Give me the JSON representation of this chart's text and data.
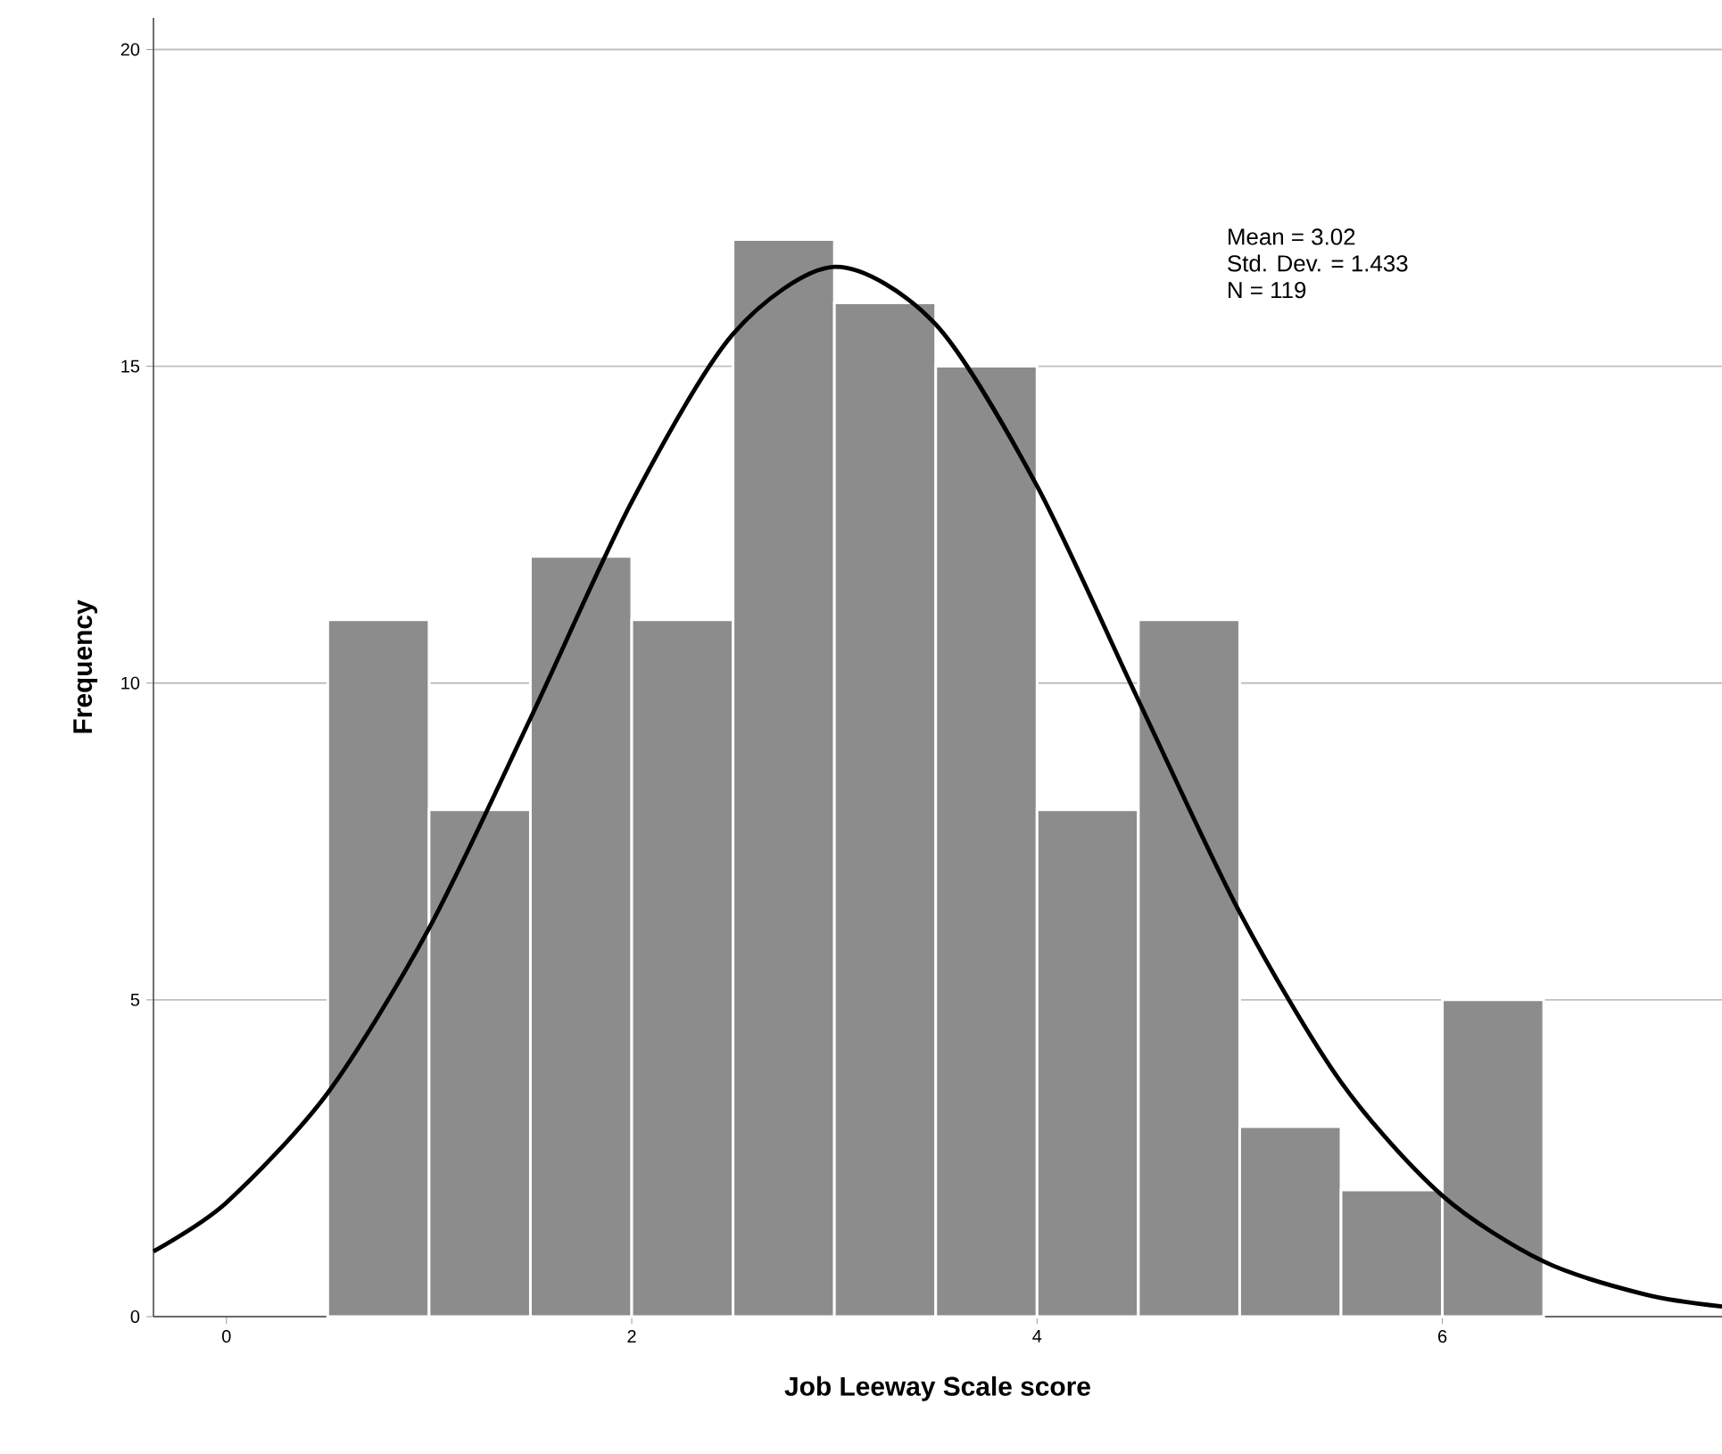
{
  "chart_data": {
    "type": "histogram",
    "xlabel": "Job Leeway Scale score",
    "ylabel": "Frequency",
    "bins": [
      0.5,
      1,
      1.5,
      2,
      2.5,
      3,
      3.5,
      4,
      4.5,
      5,
      5.5,
      6,
      6.5
    ],
    "values": [
      11,
      8,
      12,
      11,
      17,
      16,
      15,
      8,
      11,
      3,
      2,
      5
    ],
    "color": "#8c8c8c",
    "series": [
      {
        "type": "line",
        "color": "#000000",
        "x": [
          -0.36,
          0,
          0.5,
          1,
          1.5,
          2,
          2.5,
          3,
          3.5,
          4,
          4.5,
          5,
          5.5,
          6,
          6.5,
          7,
          7.38
        ],
        "values": [
          1.03,
          1.8,
          3.53,
          6.13,
          9.44,
          12.86,
          15.51,
          16.57,
          15.66,
          13.11,
          9.73,
          6.38,
          3.7,
          1.91,
          0.87,
          0.35,
          0.16
        ]
      }
    ],
    "xlim": [
      -0.36,
      7.38
    ],
    "ylim": [
      0,
      20.5
    ],
    "xticks": [
      0,
      2,
      4,
      6
    ],
    "yticks": [
      0,
      5,
      10,
      15,
      20
    ],
    "grid": "y",
    "annotations": [
      "Mean = 3.02",
      "Std. Dev. = 1.433",
      "N = 119"
    ]
  }
}
